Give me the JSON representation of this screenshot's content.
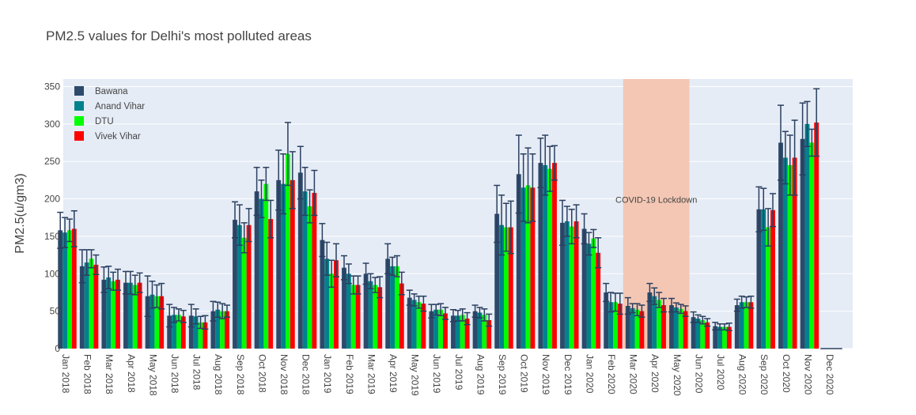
{
  "chart_data": {
    "type": "bar",
    "title": "PM2.5 values for Delhi's most polluted areas",
    "xlabel": "",
    "ylabel": "PM2.5(u/gm3)",
    "ylim": [
      0,
      360
    ],
    "yticks": [
      0,
      50,
      100,
      150,
      200,
      250,
      300,
      350
    ],
    "grid": true,
    "legend_position": "top-left",
    "x_tick_labels": [
      "Jan 2018",
      "Feb 2018",
      "Mar 2018",
      "Apr 2018",
      "May 2018",
      "Jun 2018",
      "Jul 2018",
      "Aug 2018",
      "Sep 2018",
      "Oct 2018",
      "Nov 2018",
      "Dec 2018",
      "Jan 2019",
      "Feb 2019",
      "Mar 2019",
      "Apr 2019",
      "May 2019",
      "Jun 2019",
      "Jul 2019",
      "Aug 2019",
      "Sep 2019",
      "Oct 2019",
      "Nov 2019",
      "Dec 2019",
      "Jan 2020",
      "Feb 2020",
      "Mar 2020",
      "Apr 2020",
      "May 2020",
      "Jun 2020",
      "Jul 2020",
      "Aug 2020",
      "Sep 2020",
      "Oct 2020",
      "Nov 2020",
      "Dec 2020"
    ],
    "categories": [
      "Jan 2018",
      "Feb 2018",
      "Mar 2018",
      "Apr 2018",
      "May 2018",
      "Jun 2018",
      "Jul 2018",
      "Aug 2018",
      "Sep 2018",
      "Oct 2018",
      "Nov 2018",
      "Dec 2018",
      "Jan 2019",
      "Feb 2019",
      "Mar 2019",
      "Apr 2019",
      "May 2019",
      "Jun 2019",
      "Jul 2019",
      "Aug 2019",
      "Sep 2019",
      "Oct 2019",
      "Nov 2019",
      "Dec 2019",
      "Jan 2020",
      "Feb 2020",
      "Mar 2020",
      "Apr 2020",
      "May 2020",
      "Jun 2020",
      "Jul 2020",
      "Aug 2020",
      "Sep 2020",
      "Oct 2020",
      "Nov 2020"
    ],
    "series": [
      {
        "name": "Bawana",
        "color": "#2d4a6b",
        "values": [
          158,
          110,
          92,
          88,
          70,
          44,
          44,
          50,
          172,
          210,
          225,
          235,
          145,
          108,
          100,
          120,
          68,
          50,
          44,
          50,
          180,
          233,
          248,
          168,
          160,
          75,
          57,
          75,
          58,
          42,
          30,
          58,
          186,
          275,
          280
        ],
        "errors": [
          24,
          22,
          17,
          15,
          27,
          15,
          15,
          13,
          24,
          32,
          40,
          35,
          22,
          16,
          14,
          20,
          10,
          9,
          8,
          8,
          38,
          52,
          33,
          30,
          20,
          12,
          11,
          12,
          9,
          7,
          5,
          8,
          30,
          50,
          48
        ]
      },
      {
        "name": "Anand Vihar",
        "color": "#00828c",
        "values": [
          155,
          115,
          95,
          88,
          72,
          45,
          43,
          52,
          165,
          200,
          220,
          210,
          120,
          100,
          90,
          110,
          65,
          52,
          44,
          48,
          165,
          215,
          245,
          170,
          140,
          62,
          54,
          70,
          55,
          40,
          29,
          62,
          186,
          255,
          300
        ],
        "errors": [
          20,
          17,
          15,
          15,
          18,
          10,
          10,
          10,
          27,
          25,
          40,
          32,
          22,
          13,
          10,
          12,
          8,
          7,
          7,
          7,
          40,
          45,
          40,
          20,
          15,
          13,
          6,
          11,
          6,
          5,
          4,
          8,
          28,
          35,
          30
        ]
      },
      {
        "name": "DTU",
        "color": "#00ff00",
        "values": [
          158,
          120,
          90,
          85,
          70,
          45,
          35,
          50,
          148,
          220,
          260,
          190,
          100,
          85,
          85,
          110,
          62,
          52,
          45,
          45,
          162,
          218,
          240,
          163,
          147,
          62,
          52,
          65,
          53,
          38,
          29,
          62,
          162,
          245,
          275
        ],
        "errors": [
          15,
          12,
          12,
          13,
          15,
          8,
          8,
          10,
          20,
          22,
          42,
          22,
          18,
          12,
          10,
          14,
          8,
          8,
          8,
          8,
          32,
          50,
          30,
          23,
          12,
          12,
          8,
          10,
          6,
          5,
          4,
          7,
          25,
          40,
          18
        ]
      },
      {
        "name": "Vivek Vihar",
        "color": "#ff0000",
        "values": [
          160,
          112,
          92,
          88,
          70,
          43,
          35,
          50,
          165,
          173,
          225,
          208,
          118,
          85,
          82,
          87,
          60,
          47,
          40,
          38,
          162,
          215,
          248,
          170,
          128,
          60,
          50,
          58,
          50,
          35,
          29,
          62,
          185,
          255,
          302
        ],
        "errors": [
          24,
          13,
          14,
          13,
          17,
          8,
          9,
          8,
          22,
          25,
          38,
          30,
          22,
          12,
          14,
          15,
          10,
          8,
          8,
          8,
          35,
          45,
          23,
          22,
          20,
          14,
          8,
          9,
          7,
          5,
          5,
          8,
          22,
          50,
          45
        ]
      }
    ],
    "annotation": {
      "text": "COVID-19 Lockdown",
      "x_start": "Mar 2020",
      "x_end": "Jun 2020",
      "color": "#f4c7b4"
    }
  },
  "colors": {
    "plot_bg": "#e5ecf6",
    "grid": "#ffffff",
    "error_bar": "#2a3f5f",
    "text": "#444444"
  }
}
